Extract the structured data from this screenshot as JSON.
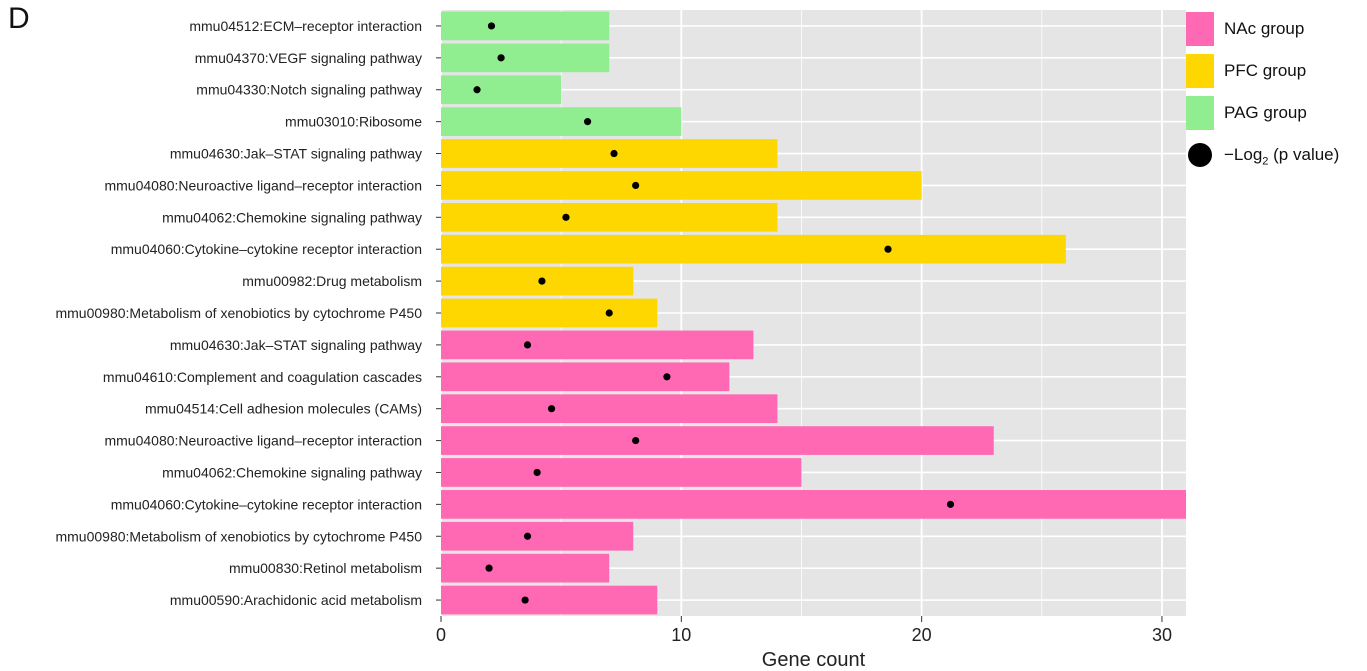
{
  "panel_label": "D",
  "chart_data": {
    "type": "bar",
    "orientation": "horizontal",
    "xlabel": "Gene count",
    "xlim": [
      0,
      31
    ],
    "xticks": [
      0,
      10,
      20,
      30
    ],
    "grid": true,
    "legend_position": "right",
    "colors": {
      "NAc": "#FF69B4",
      "PFC": "#FFD700",
      "PAG": "#90EE90",
      "dot": "#000000",
      "panel": "#E5E5E5",
      "gridline": "#FFFFFF"
    },
    "legend": [
      {
        "label": "NAc group",
        "kind": "box",
        "group": "NAc"
      },
      {
        "label": "PFC group",
        "kind": "box",
        "group": "PFC"
      },
      {
        "label": "PAG group",
        "kind": "box",
        "group": "PAG"
      },
      {
        "label": "−Log",
        "sub": "2",
        "rest": " (p value)",
        "kind": "dot"
      }
    ],
    "categories": [
      "mmu04512:ECM–receptor interaction",
      "mmu04370:VEGF signaling pathway",
      "mmu04330:Notch signaling pathway",
      "mmu03010:Ribosome",
      "mmu04630:Jak–STAT signaling pathway",
      "mmu04080:Neuroactive ligand–receptor interaction",
      "mmu04062:Chemokine signaling pathway",
      "mmu04060:Cytokine–cytokine receptor interaction",
      "mmu00982:Drug metabolism",
      "mmu00980:Metabolism of xenobiotics by cytochrome P450",
      "mmu04630:Jak–STAT signaling pathway",
      "mmu04610:Complement and coagulation cascades",
      "mmu04514:Cell adhesion molecules (CAMs)",
      "mmu04080:Neuroactive ligand–receptor interaction",
      "mmu04062:Chemokine signaling pathway",
      "mmu04060:Cytokine–cytokine receptor interaction",
      "mmu00980:Metabolism of xenobiotics by cytochrome P450",
      "mmu00830:Retinol metabolism",
      "mmu00590:Arachidonic acid metabolism"
    ],
    "groups": [
      "PAG",
      "PAG",
      "PAG",
      "PAG",
      "PFC",
      "PFC",
      "PFC",
      "PFC",
      "PFC",
      "PFC",
      "NAc",
      "NAc",
      "NAc",
      "NAc",
      "NAc",
      "NAc",
      "NAc",
      "NAc",
      "NAc"
    ],
    "gene_count": [
      7,
      7,
      5,
      10,
      14,
      20,
      14,
      26,
      8,
      9,
      13,
      12,
      14,
      23,
      15,
      31,
      8,
      7,
      9
    ],
    "neg_log2_p": [
      2.1,
      2.5,
      1.5,
      6.1,
      7.2,
      8.1,
      5.2,
      18.6,
      4.2,
      7.0,
      3.6,
      9.4,
      4.6,
      8.1,
      4.0,
      21.2,
      3.6,
      2.0,
      3.5
    ]
  }
}
